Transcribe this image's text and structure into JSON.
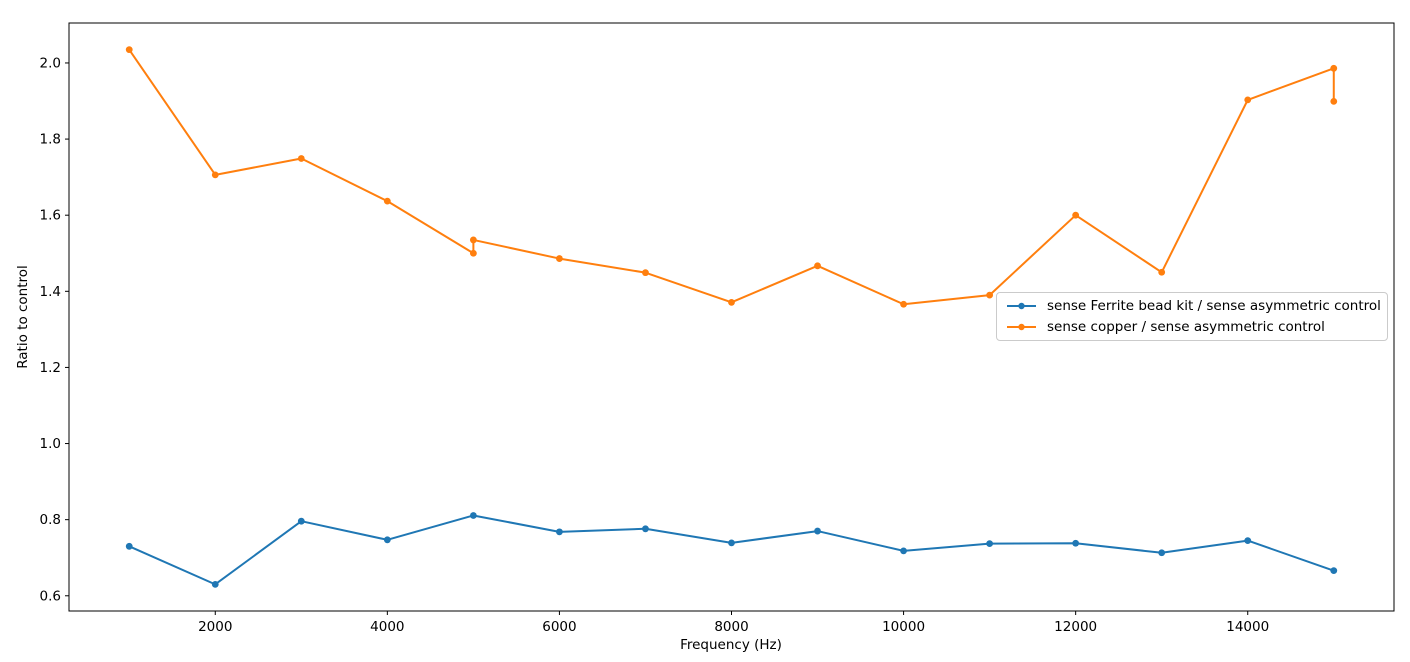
{
  "chart_data": {
    "type": "line",
    "title": "",
    "xlabel": "Frequency (Hz)",
    "ylabel": "Ratio to control",
    "xlim": [
      300,
      15700
    ],
    "ylim": [
      0.56,
      2.105
    ],
    "x_ticks": [
      2000,
      4000,
      6000,
      8000,
      10000,
      12000,
      14000
    ],
    "y_ticks": [
      0.6,
      0.8,
      1.0,
      1.2,
      1.4,
      1.6,
      1.8,
      2.0
    ],
    "grid": false,
    "legend_position": "center right",
    "series": [
      {
        "name": "sense Ferrite bead kit / sense asymmetric control",
        "color": "#1f77b4",
        "marker": "o",
        "x": [
          1000,
          2000,
          3000,
          4000,
          5000,
          6000,
          7000,
          8000,
          9000,
          10000,
          11000,
          12000,
          13000,
          14000,
          15000
        ],
        "y": [
          0.73,
          0.63,
          0.796,
          0.747,
          0.811,
          0.768,
          0.776,
          0.739,
          0.77,
          0.718,
          0.737,
          0.738,
          0.713,
          0.745,
          0.666
        ]
      },
      {
        "name": "sense copper / sense asymmetric control",
        "color": "#ff7f0e",
        "marker": "o",
        "x": [
          1000,
          2000,
          3000,
          4000,
          5000,
          5000,
          6000,
          7000,
          8000,
          9000,
          10000,
          11000,
          12000,
          13000,
          14000,
          15000,
          15000
        ],
        "y": [
          2.035,
          1.706,
          1.749,
          1.637,
          1.5,
          1.535,
          1.486,
          1.449,
          1.371,
          1.467,
          1.366,
          1.39,
          1.6,
          1.45,
          1.903,
          1.986,
          1.899
        ]
      }
    ]
  }
}
